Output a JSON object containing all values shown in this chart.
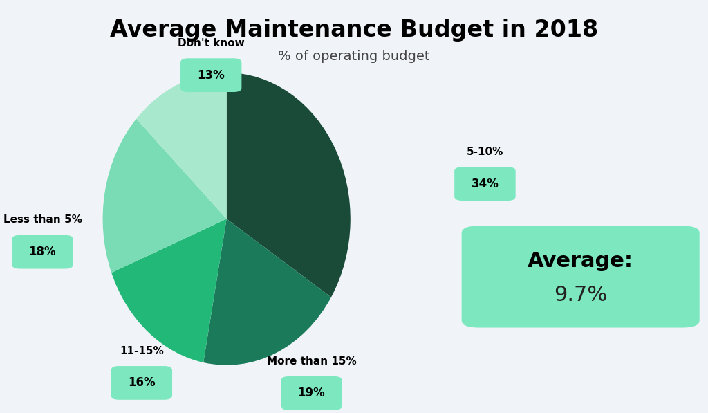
{
  "title": "Average Maintenance Budget in 2018",
  "subtitle": "% of operating budget",
  "labels": [
    "5-10%",
    "More than 15%",
    "11-15%",
    "Less than 5%",
    "Don't know"
  ],
  "values": [
    34,
    19,
    16,
    18,
    13
  ],
  "colors": [
    "#1a4a38",
    "#1a7a5a",
    "#22b878",
    "#7adcb4",
    "#a8e8cc"
  ],
  "startangle": 90,
  "average_label": "Average:",
  "average_value": "9.7%",
  "background_color": "#f0f4f8",
  "box_color": "#7de8c0",
  "label_name_fontsize": 11,
  "label_val_fontsize": 12,
  "title_fontsize": 24,
  "subtitle_fontsize": 14
}
